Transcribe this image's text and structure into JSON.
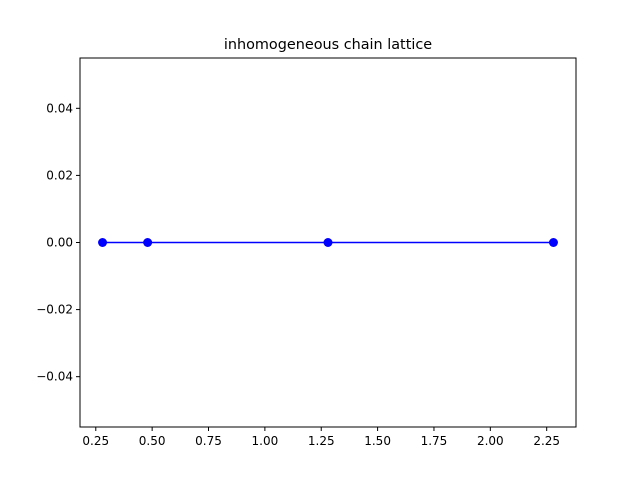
{
  "chart_data": {
    "type": "line",
    "title": "inhomogeneous chain lattice",
    "xlabel": "",
    "ylabel": "",
    "x_ticks": [
      "0.25",
      "0.50",
      "0.75",
      "1.00",
      "1.25",
      "1.50",
      "1.75",
      "2.00",
      "2.25"
    ],
    "y_ticks": [
      "−0.04",
      "−0.02",
      "0.00",
      "0.02",
      "0.04"
    ],
    "xlim": [
      0.18,
      2.38
    ],
    "ylim": [
      -0.055,
      0.055
    ],
    "grid": false,
    "series": [
      {
        "color": "#0000ff",
        "marker": "circle",
        "x": [
          0.28,
          0.48,
          1.28,
          2.28
        ],
        "y": [
          0,
          0,
          0,
          0
        ]
      }
    ]
  }
}
